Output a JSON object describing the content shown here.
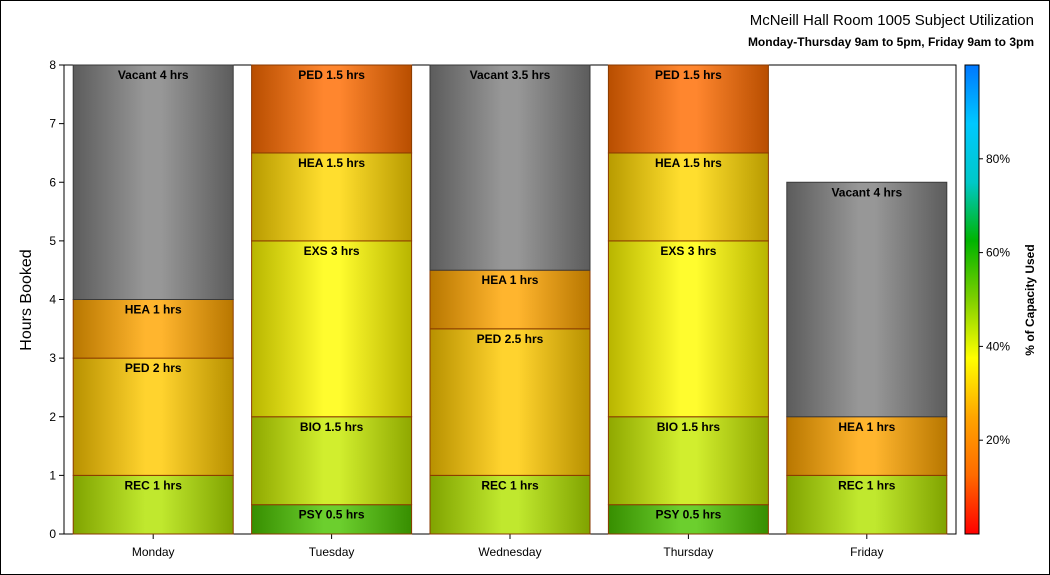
{
  "chart_data": {
    "type": "bar",
    "stacked": true,
    "title": "McNeill Hall Room 1005 Subject Utilization",
    "subtitle": "Monday-Thursday 9am to 5pm, Friday 9am to 3pm",
    "ylabel": "Hours Booked",
    "xlabel": "",
    "ylim": [
      0,
      8
    ],
    "yticks": [
      0,
      1,
      2,
      3,
      4,
      5,
      6,
      7,
      8
    ],
    "grid": false,
    "categories": [
      "Monday",
      "Tuesday",
      "Wednesday",
      "Thursday",
      "Friday"
    ],
    "stacks": [
      [
        {
          "label": "REC 1 hrs",
          "hours": 1,
          "capacity_pct": 45
        },
        {
          "label": "PED 2 hrs",
          "hours": 2,
          "capacity_pct": 30
        },
        {
          "label": "HEA 1 hrs",
          "hours": 1,
          "capacity_pct": 25
        },
        {
          "label": "Vacant 4 hrs",
          "hours": 4,
          "vacant": true
        }
      ],
      [
        {
          "label": "PSY 0.5 hrs",
          "hours": 0.5,
          "capacity_pct": 55
        },
        {
          "label": "BIO 1.5 hrs",
          "hours": 1.5,
          "capacity_pct": 43
        },
        {
          "label": "EXS 3 hrs",
          "hours": 3,
          "capacity_pct": 37
        },
        {
          "label": "HEA 1.5 hrs",
          "hours": 1.5,
          "capacity_pct": 32
        },
        {
          "label": "PED 1.5 hrs",
          "hours": 1.5,
          "capacity_pct": 13
        }
      ],
      [
        {
          "label": "REC 1 hrs",
          "hours": 1,
          "capacity_pct": 45
        },
        {
          "label": "PED 2.5 hrs",
          "hours": 2.5,
          "capacity_pct": 30
        },
        {
          "label": "HEA 1 hrs",
          "hours": 1,
          "capacity_pct": 25
        },
        {
          "label": "Vacant 3.5 hrs",
          "hours": 3.5,
          "vacant": true
        }
      ],
      [
        {
          "label": "PSY 0.5 hrs",
          "hours": 0.5,
          "capacity_pct": 55
        },
        {
          "label": "BIO 1.5 hrs",
          "hours": 1.5,
          "capacity_pct": 43
        },
        {
          "label": "EXS 3 hrs",
          "hours": 3,
          "capacity_pct": 37
        },
        {
          "label": "HEA 1.5 hrs",
          "hours": 1.5,
          "capacity_pct": 32
        },
        {
          "label": "PED 1.5 hrs",
          "hours": 1.5,
          "capacity_pct": 13
        }
      ],
      [
        {
          "label": "REC 1 hrs",
          "hours": 1,
          "capacity_pct": 45
        },
        {
          "label": "HEA 1 hrs",
          "hours": 1,
          "capacity_pct": 25
        },
        {
          "label": "Vacant 4 hrs",
          "hours": 4,
          "vacant": true
        }
      ]
    ],
    "colorbar": {
      "label": "% of Capacity Used",
      "range": [
        0,
        100
      ],
      "ticks": [
        20,
        40,
        60,
        80
      ],
      "tick_labels": [
        "20%",
        "40%",
        "60%",
        "80%"
      ],
      "stops": [
        "#ff0000",
        "#ff6a00",
        "#ffa500",
        "#ffff00",
        "#7fd000",
        "#00b400",
        "#00c8c8",
        "#00c8ff",
        "#0078ff"
      ]
    },
    "colors": {
      "vacant": "#808080",
      "segment_border": "#8a3a00",
      "plot_border": "#000000"
    }
  }
}
